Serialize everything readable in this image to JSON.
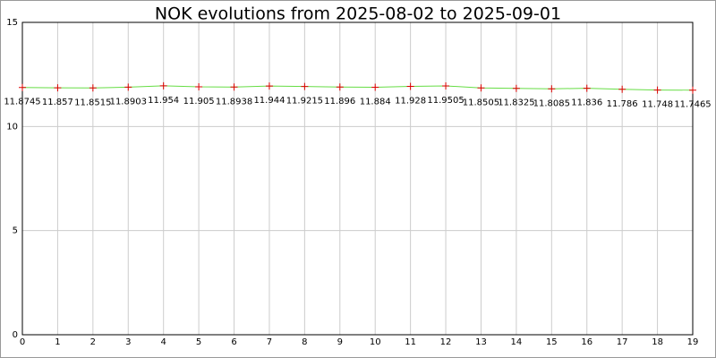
{
  "chart_data": {
    "type": "line",
    "title": "NOK evolutions from 2025-08-02 to 2025-09-01",
    "x": [
      0,
      1,
      2,
      3,
      4,
      5,
      6,
      7,
      8,
      9,
      10,
      11,
      12,
      13,
      14,
      15,
      16,
      17,
      18,
      19
    ],
    "series": [
      {
        "color": "#66dd44",
        "marker_color": "#dd0000",
        "values": [
          11.8745,
          11.857,
          11.8515,
          11.8903,
          11.954,
          11.905,
          11.8938,
          11.944,
          11.9215,
          11.896,
          11.884,
          11.928,
          11.9505,
          11.8505,
          11.8325,
          11.8085,
          11.836,
          11.786,
          11.748,
          11.7465
        ]
      }
    ],
    "xlim": [
      0,
      19
    ],
    "xticks": [
      0,
      1,
      2,
      3,
      4,
      5,
      6,
      7,
      8,
      9,
      10,
      11,
      12,
      13,
      14,
      15,
      16,
      17,
      18,
      19
    ],
    "ylim": [
      0,
      15
    ],
    "yticks": [
      0,
      5,
      10,
      15
    ],
    "grid": true
  }
}
